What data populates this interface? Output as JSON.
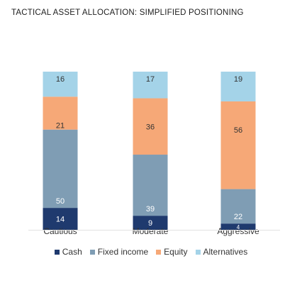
{
  "chart_data": {
    "type": "bar",
    "stacked": true,
    "title": "TACTICAL ASSET ALLOCATION: SIMPLIFIED POSITIONING",
    "categories": [
      "Cautious",
      "Moderate",
      "Aggressive"
    ],
    "series": [
      {
        "name": "Cash",
        "color": "#1f3a6e",
        "values": [
          14,
          9,
          4
        ]
      },
      {
        "name": "Fixed income",
        "color": "#7f9db4",
        "values": [
          50,
          39,
          22
        ]
      },
      {
        "name": "Equity",
        "color": "#f6a877",
        "values": [
          21,
          36,
          56
        ]
      },
      {
        "name": "Alternatives",
        "color": "#a4d3e8",
        "values": [
          16,
          17,
          19
        ]
      }
    ],
    "ylim": [
      0,
      101
    ],
    "legend": "bottom",
    "grid": false
  }
}
